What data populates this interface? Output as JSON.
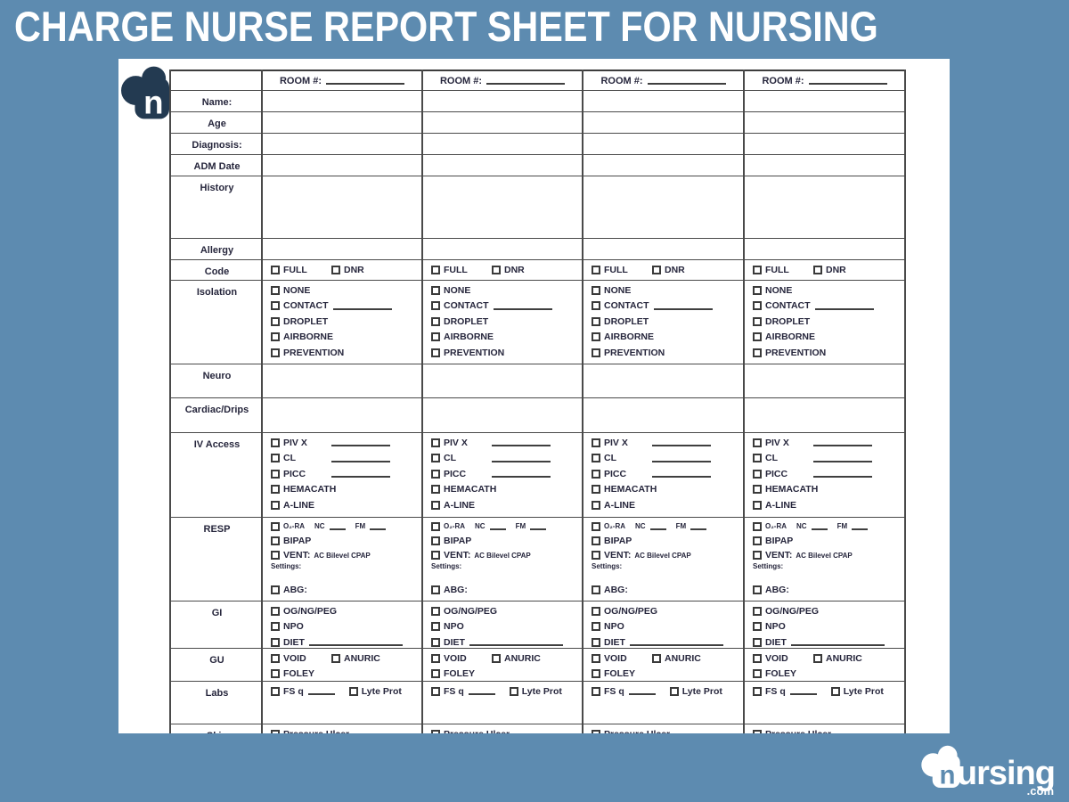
{
  "title": "CHARGE NURSE REPORT SHEET FOR NURSING",
  "page_logo": {
    "letter": "n"
  },
  "footer_logo": {
    "brand": "nursing",
    "wordmark_tail": "ursing",
    "tld": ".com",
    "letter": "n"
  },
  "colors": {
    "background_blue": "#5d8bb0",
    "ink_navy": "#26263c",
    "logo_navy": "#233a51",
    "page_white": "#ffffff",
    "grid_line": "#4a4a4a"
  },
  "form": {
    "room_header_label": "ROOM #:",
    "room_columns": 4,
    "rows": [
      {
        "label": "Name:",
        "lines": []
      },
      {
        "label": "Age",
        "lines": []
      },
      {
        "label": "Diagnosis:",
        "lines": []
      },
      {
        "label": "ADM Date",
        "lines": []
      },
      {
        "label": "History",
        "lines": []
      },
      {
        "label": "Allergy",
        "lines": []
      },
      {
        "label": "Code",
        "lines": [
          [
            {
              "cb": "FULL",
              "tab": 1
            },
            {
              "cb": "DNR"
            }
          ]
        ]
      },
      {
        "label": "Isolation",
        "lines": [
          [
            {
              "cb": "NONE"
            }
          ],
          [
            {
              "cb": "CONTACT"
            },
            {
              "u": "med"
            }
          ],
          [
            {
              "cb": "DROPLET"
            }
          ],
          [
            {
              "cb": "AIRBORNE"
            }
          ],
          [
            {
              "cb": "PREVENTION"
            }
          ]
        ]
      },
      {
        "label": "Neuro",
        "lines": []
      },
      {
        "label": "Cardiac/Drips",
        "lines": []
      },
      {
        "label": "IV Access",
        "lines": [
          [
            {
              "cb": "PIV X",
              "tab": 1
            },
            {
              "u": "med"
            }
          ],
          [
            {
              "cb": "CL",
              "tab": 1
            },
            {
              "u": "med"
            }
          ],
          [
            {
              "cb": "PICC",
              "tab": 1
            },
            {
              "u": "med"
            }
          ],
          [
            {
              "cb": "HEMACATH"
            }
          ],
          [
            {
              "cb": "A-LINE"
            }
          ]
        ]
      },
      {
        "label": "RESP",
        "lines": [
          [
            {
              "cb": "O₂-RA",
              "sm": 1
            },
            {
              "t": "NC",
              "sm": 1,
              "gap": 1
            },
            {
              "u": "short"
            },
            {
              "t": "FM",
              "sm": 1,
              "gap": 1
            },
            {
              "u": "short"
            }
          ],
          [
            {
              "cb": "BIPAP"
            }
          ],
          [
            {
              "cb": "VENT:"
            },
            {
              "t": "AC Bilevel CPAP",
              "sm": 1
            }
          ],
          [
            {
              "t": "Settings:",
              "sm": 1
            }
          ],
          [],
          [
            {
              "cb": "ABG:"
            }
          ]
        ]
      },
      {
        "label": "GI",
        "lines": [
          [
            {
              "cb": "OG/NG/PEG"
            }
          ],
          [
            {
              "cb": "NPO"
            }
          ],
          [
            {
              "cb": "DIET"
            },
            {
              "u": "long"
            }
          ]
        ]
      },
      {
        "label": "GU",
        "lines": [
          [
            {
              "cb": "VOID",
              "tab": 1
            },
            {
              "cb": "ANURIC"
            }
          ],
          [
            {
              "cb": "FOLEY"
            }
          ]
        ]
      },
      {
        "label": "Labs",
        "lines": [
          [
            {
              "cb": "FS q"
            },
            {
              "u": "short2"
            },
            {
              "cb": "Lyte Prot",
              "gap": 1
            }
          ]
        ]
      },
      {
        "label": "Skin",
        "lines": [
          [
            {
              "cb": "Pressure Ulcer"
            }
          ]
        ]
      }
    ]
  }
}
